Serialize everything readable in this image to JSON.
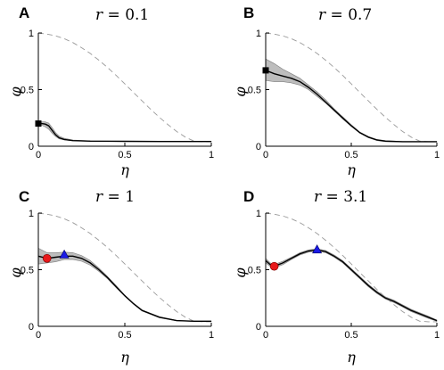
{
  "chart_data": [
    {
      "type": "line",
      "panel_label": "A",
      "title_var": "r",
      "title_rest": " = 0.1",
      "xlabel": "η",
      "ylabel": "φ",
      "xlim": [
        0,
        1
      ],
      "ylim": [
        0,
        1
      ],
      "xticks": [
        0,
        0.5,
        1
      ],
      "xtick_labels": [
        "0",
        "0.5",
        "1"
      ],
      "yticks": [
        0,
        0.5,
        1
      ],
      "ytick_labels": [
        "0",
        "0.5",
        "1"
      ],
      "grid": false,
      "series": [
        {
          "role": "upper-bound",
          "style": "dashed",
          "color": "#9a9a9a",
          "x": [
            0,
            0.05,
            0.1,
            0.15,
            0.2,
            0.25,
            0.3,
            0.35,
            0.4,
            0.45,
            0.5,
            0.55,
            0.6,
            0.65,
            0.7,
            0.75,
            0.8,
            0.85,
            0.9,
            0.95,
            1.0
          ],
          "y": [
            1.0,
            0.99,
            0.975,
            0.95,
            0.915,
            0.87,
            0.82,
            0.76,
            0.695,
            0.625,
            0.55,
            0.475,
            0.4,
            0.325,
            0.255,
            0.19,
            0.13,
            0.08,
            0.045,
            0.04,
            0.04
          ]
        },
        {
          "role": "mean",
          "style": "solid",
          "color": "#000000",
          "x": [
            0,
            0.02,
            0.04,
            0.06,
            0.08,
            0.1,
            0.12,
            0.15,
            0.2,
            0.3,
            0.5,
            0.7,
            0.9,
            1.0
          ],
          "y": [
            0.2,
            0.2,
            0.195,
            0.18,
            0.14,
            0.1,
            0.075,
            0.06,
            0.05,
            0.045,
            0.043,
            0.042,
            0.042,
            0.042
          ],
          "band_lower": [
            0.19,
            0.185,
            0.17,
            0.15,
            0.115,
            0.085,
            0.065,
            0.055,
            0.047,
            0.043,
            0.042,
            0.041,
            0.041,
            0.041
          ],
          "band_upper": [
            0.21,
            0.215,
            0.215,
            0.205,
            0.165,
            0.12,
            0.09,
            0.07,
            0.055,
            0.048,
            0.045,
            0.044,
            0.044,
            0.044
          ]
        }
      ],
      "markers": [
        {
          "shape": "square",
          "color": "#000000",
          "x": 0.0,
          "y": 0.2
        }
      ]
    },
    {
      "type": "line",
      "panel_label": "B",
      "title_var": "r",
      "title_rest": " = 0.7",
      "xlabel": "η",
      "ylabel": "φ",
      "xlim": [
        0,
        1
      ],
      "ylim": [
        0,
        1
      ],
      "xticks": [
        0,
        0.5,
        1
      ],
      "xtick_labels": [
        "0",
        "0.5",
        "1"
      ],
      "yticks": [
        0,
        0.5,
        1
      ],
      "ytick_labels": [
        "0",
        "0.5",
        "1"
      ],
      "grid": false,
      "series": [
        {
          "role": "upper-bound",
          "style": "dashed",
          "color": "#9a9a9a",
          "x": [
            0,
            0.05,
            0.1,
            0.15,
            0.2,
            0.25,
            0.3,
            0.35,
            0.4,
            0.45,
            0.5,
            0.55,
            0.6,
            0.65,
            0.7,
            0.75,
            0.8,
            0.85,
            0.9,
            0.95,
            1.0
          ],
          "y": [
            1.0,
            0.99,
            0.975,
            0.95,
            0.915,
            0.87,
            0.82,
            0.76,
            0.695,
            0.625,
            0.55,
            0.475,
            0.4,
            0.325,
            0.255,
            0.19,
            0.13,
            0.08,
            0.045,
            0.04,
            0.04
          ]
        },
        {
          "role": "mean",
          "style": "solid",
          "color": "#000000",
          "x": [
            0,
            0.05,
            0.1,
            0.15,
            0.2,
            0.25,
            0.3,
            0.35,
            0.4,
            0.45,
            0.5,
            0.55,
            0.6,
            0.65,
            0.7,
            0.8,
            0.9,
            1.0
          ],
          "y": [
            0.67,
            0.64,
            0.62,
            0.6,
            0.57,
            0.52,
            0.46,
            0.39,
            0.32,
            0.25,
            0.18,
            0.12,
            0.08,
            0.055,
            0.045,
            0.04,
            0.04,
            0.04
          ],
          "band_lower": [
            0.58,
            0.57,
            0.57,
            0.56,
            0.54,
            0.5,
            0.44,
            0.38,
            0.31,
            0.24,
            0.175,
            0.115,
            0.075,
            0.05,
            0.04,
            0.038,
            0.038,
            0.038
          ],
          "band_upper": [
            0.77,
            0.73,
            0.68,
            0.64,
            0.6,
            0.54,
            0.48,
            0.41,
            0.33,
            0.26,
            0.19,
            0.125,
            0.085,
            0.06,
            0.05,
            0.042,
            0.042,
            0.042
          ]
        }
      ],
      "markers": [
        {
          "shape": "square",
          "color": "#000000",
          "x": 0.0,
          "y": 0.67
        }
      ]
    },
    {
      "type": "line",
      "panel_label": "C",
      "title_var": "r",
      "title_rest": " = 1",
      "xlabel": "η",
      "ylabel": "φ",
      "xlim": [
        0,
        1
      ],
      "ylim": [
        0,
        1
      ],
      "xticks": [
        0,
        0.5,
        1
      ],
      "xtick_labels": [
        "0",
        "0.5",
        "1"
      ],
      "yticks": [
        0,
        0.5,
        1
      ],
      "ytick_labels": [
        "0",
        "0.5",
        "1"
      ],
      "grid": false,
      "series": [
        {
          "role": "upper-bound",
          "style": "dashed",
          "color": "#9a9a9a",
          "x": [
            0,
            0.05,
            0.1,
            0.15,
            0.2,
            0.25,
            0.3,
            0.35,
            0.4,
            0.45,
            0.5,
            0.55,
            0.6,
            0.65,
            0.7,
            0.75,
            0.8,
            0.85,
            0.9,
            0.95,
            1.0
          ],
          "y": [
            1.0,
            0.99,
            0.975,
            0.95,
            0.915,
            0.87,
            0.82,
            0.76,
            0.695,
            0.625,
            0.55,
            0.475,
            0.4,
            0.325,
            0.255,
            0.19,
            0.13,
            0.08,
            0.045,
            0.04,
            0.04
          ]
        },
        {
          "role": "mean",
          "style": "solid",
          "color": "#000000",
          "x": [
            0,
            0.05,
            0.1,
            0.15,
            0.2,
            0.25,
            0.3,
            0.35,
            0.4,
            0.45,
            0.5,
            0.55,
            0.6,
            0.65,
            0.7,
            0.8,
            0.9,
            1.0
          ],
          "y": [
            0.62,
            0.6,
            0.61,
            0.62,
            0.62,
            0.6,
            0.56,
            0.5,
            0.43,
            0.35,
            0.27,
            0.2,
            0.14,
            0.11,
            0.08,
            0.05,
            0.045,
            0.045
          ],
          "band_lower": [
            0.55,
            0.56,
            0.57,
            0.59,
            0.59,
            0.575,
            0.54,
            0.485,
            0.42,
            0.34,
            0.265,
            0.195,
            0.135,
            0.105,
            0.075,
            0.048,
            0.043,
            0.043
          ],
          "band_upper": [
            0.69,
            0.65,
            0.65,
            0.655,
            0.65,
            0.625,
            0.58,
            0.515,
            0.44,
            0.36,
            0.275,
            0.205,
            0.145,
            0.115,
            0.085,
            0.052,
            0.047,
            0.047
          ]
        }
      ],
      "markers": [
        {
          "shape": "circle",
          "color": "#e8191b",
          "x": 0.05,
          "y": 0.6
        },
        {
          "shape": "triangle",
          "color": "#1a1ae6",
          "x": 0.15,
          "y": 0.63
        }
      ]
    },
    {
      "type": "line",
      "panel_label": "D",
      "title_var": "r",
      "title_rest": " = 3.1",
      "xlabel": "η",
      "ylabel": "φ",
      "xlim": [
        0,
        1
      ],
      "ylim": [
        0,
        1
      ],
      "xticks": [
        0,
        0.5,
        1
      ],
      "xtick_labels": [
        "0",
        "0.5",
        "1"
      ],
      "yticks": [
        0,
        0.5,
        1
      ],
      "ytick_labels": [
        "0",
        "0.5",
        "1"
      ],
      "grid": false,
      "series": [
        {
          "role": "upper-bound",
          "style": "dashed",
          "color": "#9a9a9a",
          "x": [
            0,
            0.05,
            0.1,
            0.15,
            0.2,
            0.25,
            0.3,
            0.35,
            0.4,
            0.45,
            0.5,
            0.55,
            0.6,
            0.65,
            0.7,
            0.75,
            0.8,
            0.85,
            0.9,
            0.95,
            1.0
          ],
          "y": [
            1.0,
            0.99,
            0.975,
            0.95,
            0.915,
            0.87,
            0.82,
            0.76,
            0.695,
            0.625,
            0.55,
            0.475,
            0.4,
            0.325,
            0.255,
            0.19,
            0.13,
            0.08,
            0.045,
            0.04,
            0.04
          ]
        },
        {
          "role": "mean",
          "style": "solid",
          "color": "#000000",
          "x": [
            0,
            0.03,
            0.05,
            0.1,
            0.15,
            0.2,
            0.25,
            0.3,
            0.35,
            0.4,
            0.45,
            0.5,
            0.55,
            0.6,
            0.65,
            0.7,
            0.75,
            0.8,
            0.85,
            0.9,
            0.95,
            1.0
          ],
          "y": [
            0.58,
            0.54,
            0.53,
            0.56,
            0.6,
            0.64,
            0.665,
            0.675,
            0.66,
            0.62,
            0.57,
            0.5,
            0.43,
            0.36,
            0.3,
            0.25,
            0.22,
            0.18,
            0.14,
            0.11,
            0.08,
            0.05
          ],
          "band_lower": [
            0.56,
            0.525,
            0.515,
            0.545,
            0.59,
            0.63,
            0.655,
            0.665,
            0.65,
            0.61,
            0.56,
            0.49,
            0.42,
            0.35,
            0.29,
            0.24,
            0.21,
            0.17,
            0.13,
            0.1,
            0.07,
            0.045
          ],
          "band_upper": [
            0.6,
            0.555,
            0.545,
            0.575,
            0.61,
            0.65,
            0.675,
            0.685,
            0.67,
            0.63,
            0.58,
            0.51,
            0.44,
            0.37,
            0.31,
            0.26,
            0.23,
            0.19,
            0.15,
            0.12,
            0.09,
            0.055
          ]
        }
      ],
      "markers": [
        {
          "shape": "circle",
          "color": "#e8191b",
          "x": 0.05,
          "y": 0.53
        },
        {
          "shape": "triangle",
          "color": "#1a1ae6",
          "x": 0.3,
          "y": 0.675
        }
      ]
    }
  ]
}
